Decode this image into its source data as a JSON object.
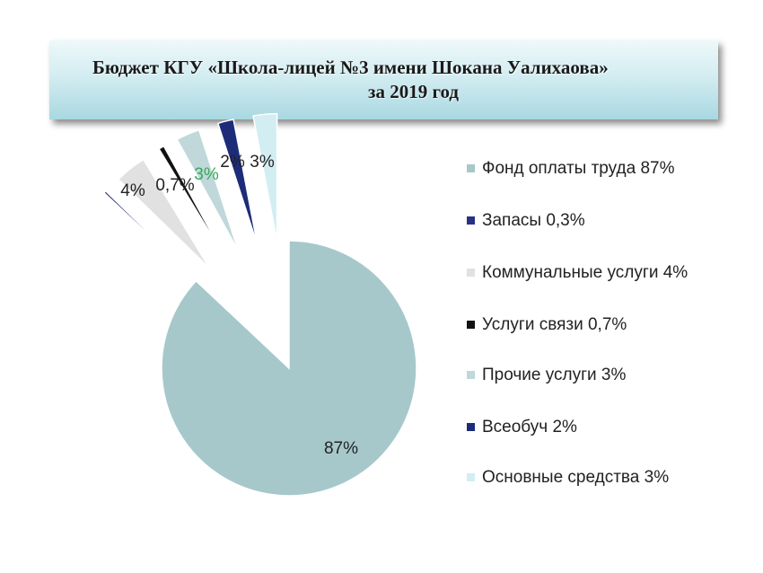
{
  "title": {
    "line1": "Бюджет КГУ «Школа-лицей №3 имени Шокана Уалихаова»",
    "line2": "за 2019 год"
  },
  "chart_data": {
    "type": "pie",
    "exploded": true,
    "categories": [
      "Фонд оплаты труда",
      "Запасы",
      "Коммунальные услуги",
      "Услуги связи",
      "Прочие услуги",
      "Всеобуч",
      "Основные средства"
    ],
    "values": [
      87,
      0.3,
      4,
      0.7,
      3,
      2,
      3
    ],
    "data_labels": [
      "87%",
      "",
      "4%",
      "0,7%",
      "3%",
      "2%",
      "3%"
    ],
    "colors": [
      "#a6c8cb",
      "#283283",
      "#e1e1e1",
      "#111111",
      "#c0d8da",
      "#1d2c79",
      "#d2eef2"
    ],
    "label_colors": [
      "#222222",
      "#222222",
      "#222222",
      "#222222",
      "#3aa65a",
      "#222222",
      "#222222"
    ],
    "legend": {
      "position": "right",
      "entries": [
        "Фонд оплаты труда 87%",
        "Запасы 0,3%",
        "Коммунальные услуги 4%",
        "Услуги связи 0,7%",
        "Прочие услуги 3%",
        "Всеобуч 2%",
        "Основные средства 3%"
      ]
    }
  }
}
